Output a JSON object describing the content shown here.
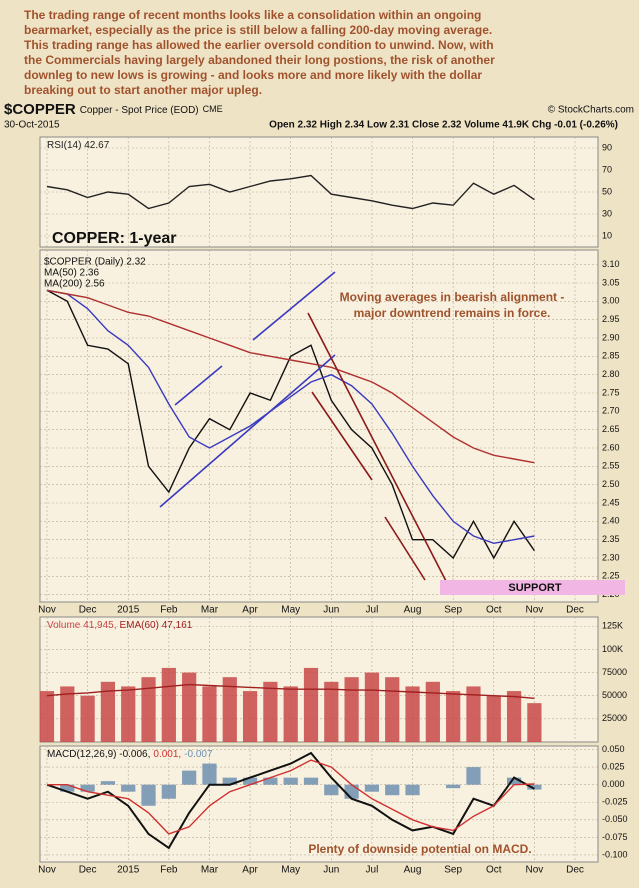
{
  "commentary": [
    "The trading range of recent months looks like a consolidation within an ongoing",
    "bearmarket, especially as the price is still below a falling 200-day moving average.",
    "This trading range has allowed the earlier oversold condition to unwind. Now, with",
    "the Commercials having largely abandoned their long postions, the risk of another",
    "downleg to new lows is growing - and looks more and more likely with the dollar",
    "breaking out to start another major upleg."
  ],
  "header": {
    "symbol": "$COPPER",
    "name": "Copper - Spot Price (EOD)",
    "exchange": "CME",
    "source": "© StockCharts.com",
    "date": "30-Oct-2015",
    "quote": "Open 2.32 High 2.34 Low 2.31 Close 2.32 Volume 41.9K Chg -0.01 (-0.26%)"
  },
  "chart_data": [
    {
      "type": "line",
      "categories": [
        "Nov",
        null,
        "Dec",
        null,
        "2015",
        null,
        "Feb",
        null,
        "Mar",
        null,
        "Apr",
        null,
        "May",
        null,
        "Jun",
        null,
        "Jul",
        null,
        "Aug",
        null,
        "Sep",
        null,
        "Oct",
        null,
        "Nov",
        null,
        "Dec"
      ],
      "ylim": [
        0,
        100
      ],
      "yticks": [
        10,
        30,
        50,
        70,
        90
      ],
      "grid": true,
      "series": [
        {
          "name": "RSI(14) 42.67",
          "color": "#222222",
          "values": [
            55,
            52,
            45,
            50,
            48,
            35,
            40,
            55,
            57,
            50,
            55,
            60,
            62,
            65,
            48,
            45,
            42,
            38,
            35,
            40,
            38,
            58,
            48,
            56,
            43,
            null,
            null
          ]
        }
      ]
    },
    {
      "type": "line",
      "title": "COPPER: 1-year",
      "annotations": [
        "Moving averages in bearish alignment -",
        "major downtrend remains in force.",
        "SUPPORT"
      ],
      "categories": [
        "Nov",
        null,
        "Dec",
        null,
        "2015",
        null,
        "Feb",
        null,
        "Mar",
        null,
        "Apr",
        null,
        "May",
        null,
        "Jun",
        null,
        "Jul",
        null,
        "Aug",
        null,
        "Sep",
        null,
        "Oct",
        null,
        "Nov",
        null,
        "Dec"
      ],
      "ylim": [
        2.18,
        3.14
      ],
      "yticks": [
        {
          "value": 2.2,
          "label": "2.20"
        },
        2.25,
        {
          "value": 2.3,
          "label": "2.30"
        },
        2.35,
        {
          "value": 2.4,
          "label": "2.40"
        },
        2.45,
        {
          "value": 2.5,
          "label": "2.50"
        },
        2.55,
        {
          "value": 2.6,
          "label": "2.60"
        },
        2.65,
        {
          "value": 2.7,
          "label": "2.70"
        },
        2.75,
        {
          "value": 2.8,
          "label": "2.80"
        },
        2.85,
        {
          "value": 2.9,
          "label": "2.90"
        },
        2.95,
        {
          "value": 3.0,
          "label": "3.00"
        },
        3.05,
        {
          "value": 3.1,
          "label": "3.10"
        }
      ],
      "grid": true,
      "series": [
        {
          "name": "$COPPER (Daily) 2.32",
          "color": "#111111",
          "values": [
            3.03,
            3.0,
            2.88,
            2.87,
            2.83,
            2.55,
            2.48,
            2.6,
            2.68,
            2.65,
            2.75,
            2.73,
            2.85,
            2.88,
            2.73,
            2.65,
            2.6,
            2.5,
            2.35,
            2.35,
            2.3,
            2.4,
            2.3,
            2.4,
            2.32,
            null,
            null
          ]
        },
        {
          "name": "MA(50) 2.36",
          "color": "#3a3ac0",
          "values": [
            3.03,
            3.02,
            2.98,
            2.92,
            2.88,
            2.82,
            2.72,
            2.63,
            2.6,
            2.63,
            2.66,
            2.7,
            2.74,
            2.78,
            2.8,
            2.77,
            2.72,
            2.64,
            2.55,
            2.47,
            2.4,
            2.36,
            2.34,
            2.35,
            2.36,
            null,
            null
          ]
        },
        {
          "name": "MA(200) 2.56",
          "color": "#b03030",
          "values": [
            3.03,
            3.02,
            3.01,
            2.99,
            2.97,
            2.96,
            2.94,
            2.92,
            2.9,
            2.88,
            2.86,
            2.85,
            2.84,
            2.83,
            2.82,
            2.8,
            2.78,
            2.75,
            2.71,
            2.67,
            2.63,
            2.6,
            2.58,
            2.57,
            2.56,
            null,
            null
          ]
        }
      ]
    },
    {
      "type": "bar",
      "categories": [
        "Nov",
        null,
        "Dec",
        null,
        "2015",
        null,
        "Feb",
        null,
        "Mar",
        null,
        "Apr",
        null,
        "May",
        null,
        "Jun",
        null,
        "Jul",
        null,
        "Aug",
        null,
        "Sep",
        null,
        "Oct",
        null,
        "Nov",
        null,
        "Dec"
      ],
      "ylim": [
        0,
        135000
      ],
      "yticks": [
        25000,
        50000,
        75000,
        {
          "value": 100000,
          "label": "100K"
        },
        {
          "value": 125000,
          "label": "125K"
        }
      ],
      "grid": true,
      "series": [
        {
          "name": "Volume 41,945,",
          "type": "bar",
          "color": "#c84848",
          "values": [
            55000,
            60000,
            50000,
            65000,
            60000,
            70000,
            80000,
            75000,
            60000,
            70000,
            55000,
            65000,
            60000,
            80000,
            65000,
            70000,
            75000,
            70000,
            60000,
            65000,
            55000,
            60000,
            50000,
            55000,
            41945,
            null,
            null
          ]
        },
        {
          "name": "EMA(60) 47,161",
          "type": "line",
          "color": "#a02020",
          "values": [
            50000,
            52000,
            53000,
            55000,
            56000,
            58000,
            60000,
            62000,
            61000,
            60000,
            59000,
            58000,
            57000,
            57000,
            57000,
            56000,
            56000,
            55000,
            54000,
            53000,
            52000,
            51000,
            50000,
            49000,
            47161,
            null,
            null
          ]
        }
      ]
    },
    {
      "type": "line",
      "annotations": [
        "Plenty of downside potential on MACD."
      ],
      "categories": [
        "Nov",
        null,
        "Dec",
        null,
        "2015",
        null,
        "Feb",
        null,
        "Mar",
        null,
        "Apr",
        null,
        "May",
        null,
        "Jun",
        null,
        "Jul",
        null,
        "Aug",
        null,
        "Sep",
        null,
        "Oct",
        null,
        "Nov",
        null,
        "Dec"
      ],
      "ylim": [
        -0.11,
        0.055
      ],
      "yticks": [
        {
          "value": -0.1,
          "label": "-0.100"
        },
        -0.075,
        {
          "value": -0.05,
          "label": "-0.050"
        },
        -0.025,
        {
          "value": 0,
          "label": "0.000"
        },
        0.025,
        {
          "value": 0.05,
          "label": "0.050"
        }
      ],
      "grid": true,
      "series": [
        {
          "name": "-0.007",
          "type": "bar",
          "color": "#6f8fb0",
          "values": [
            0,
            -0.01,
            -0.01,
            0.005,
            -0.01,
            -0.03,
            -0.02,
            0.02,
            0.03,
            0.01,
            0.01,
            0.01,
            0.01,
            0.01,
            -0.015,
            -0.02,
            -0.01,
            -0.015,
            -0.015,
            0,
            -0.005,
            0.025,
            0,
            0.01,
            -0.007,
            null,
            null
          ]
        },
        {
          "name": "MACD(12,26,9) -0.006,",
          "type": "line",
          "color": "#111111",
          "values": [
            0,
            -0.01,
            -0.02,
            -0.01,
            -0.03,
            -0.07,
            -0.09,
            -0.04,
            0,
            0,
            0.01,
            0.02,
            0.03,
            0.045,
            0.01,
            -0.02,
            -0.03,
            -0.05,
            -0.065,
            -0.06,
            -0.07,
            -0.02,
            -0.03,
            0.01,
            -0.006,
            null,
            null
          ]
        },
        {
          "name": "0.001,",
          "type": "line",
          "color": "#d03030",
          "values": [
            0,
            0,
            -0.01,
            -0.015,
            -0.02,
            -0.04,
            -0.07,
            -0.06,
            -0.03,
            -0.01,
            0,
            0.01,
            0.02,
            0.035,
            0.025,
            0,
            -0.02,
            -0.035,
            -0.05,
            -0.06,
            -0.065,
            -0.045,
            -0.03,
            0,
            0.001,
            null,
            null
          ]
        }
      ]
    }
  ]
}
